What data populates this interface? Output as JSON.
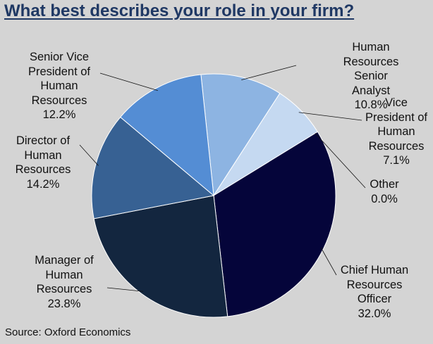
{
  "chart_data": {
    "type": "pie",
    "title": "What best describes your role in your firm?",
    "source": "Source: Oxford Economics",
    "slices": [
      {
        "label": "Human\nResources\nSenior\nAnalyst",
        "value_text": "10.8%",
        "value": 10.8,
        "color": "#8db4e2"
      },
      {
        "label": "Vice\nPresident of\nHuman\nResources",
        "value_text": "7.1%",
        "value": 7.1,
        "color": "#c5d9f1"
      },
      {
        "label": "Other",
        "value_text": "0.0%",
        "value": 0.0,
        "color": "#ffffff"
      },
      {
        "label": "Chief Human\nResources\nOfficer",
        "value_text": "32.0%",
        "value": 32.0,
        "color": "#05053a"
      },
      {
        "label": "Manager of\nHuman\nResources",
        "value_text": "23.8%",
        "value": 23.8,
        "color": "#13263f"
      },
      {
        "label": "Director of\nHuman\nResources",
        "value_text": "14.2%",
        "value": 14.2,
        "color": "#376193"
      },
      {
        "label": "Senior Vice\nPresident of\nHuman\nResources",
        "value_text": "12.2%",
        "value": 12.2,
        "color": "#548dd4"
      }
    ]
  }
}
